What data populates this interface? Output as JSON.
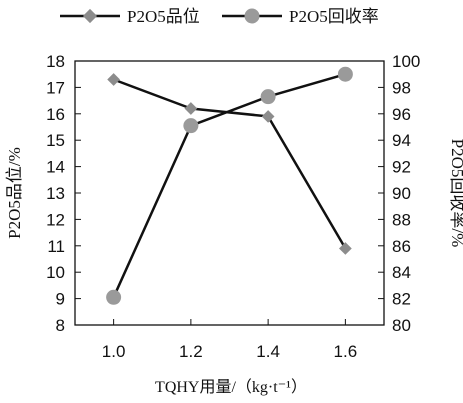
{
  "colors": {
    "line": "#111111",
    "marker_grade": "#8c8c8c",
    "marker_recovery": "#9a9a9a",
    "axis": "#111111"
  },
  "chart_data": {
    "type": "line",
    "title": "",
    "categories": [
      "1.0",
      "1.2",
      "1.4",
      "1.6"
    ],
    "x": [
      1.0,
      1.2,
      1.4,
      1.6
    ],
    "xlabel": "TQHY用量/（kg·t⁻¹）",
    "ylabel": "P2O5品位/%",
    "y2label": "P2O5回收率/%",
    "xlim": [
      0.9,
      1.7
    ],
    "ylim": [
      8,
      18
    ],
    "y2lim": [
      80,
      100
    ],
    "yticks": [
      "8",
      "9",
      "10",
      "11",
      "12",
      "13",
      "14",
      "15",
      "16",
      "17",
      "18"
    ],
    "y2ticks": [
      "80",
      "82",
      "84",
      "86",
      "88",
      "90",
      "92",
      "94",
      "96",
      "98",
      "100"
    ],
    "grid": false,
    "legend": "top",
    "series": [
      {
        "name": "P2O5品位",
        "axis": "left",
        "marker": "diamond",
        "values": [
          17.3,
          16.2,
          15.9,
          10.9
        ]
      },
      {
        "name": "P2O5回收率",
        "axis": "right",
        "marker": "circle",
        "values": [
          82.1,
          95.1,
          97.3,
          99.0
        ]
      }
    ]
  }
}
